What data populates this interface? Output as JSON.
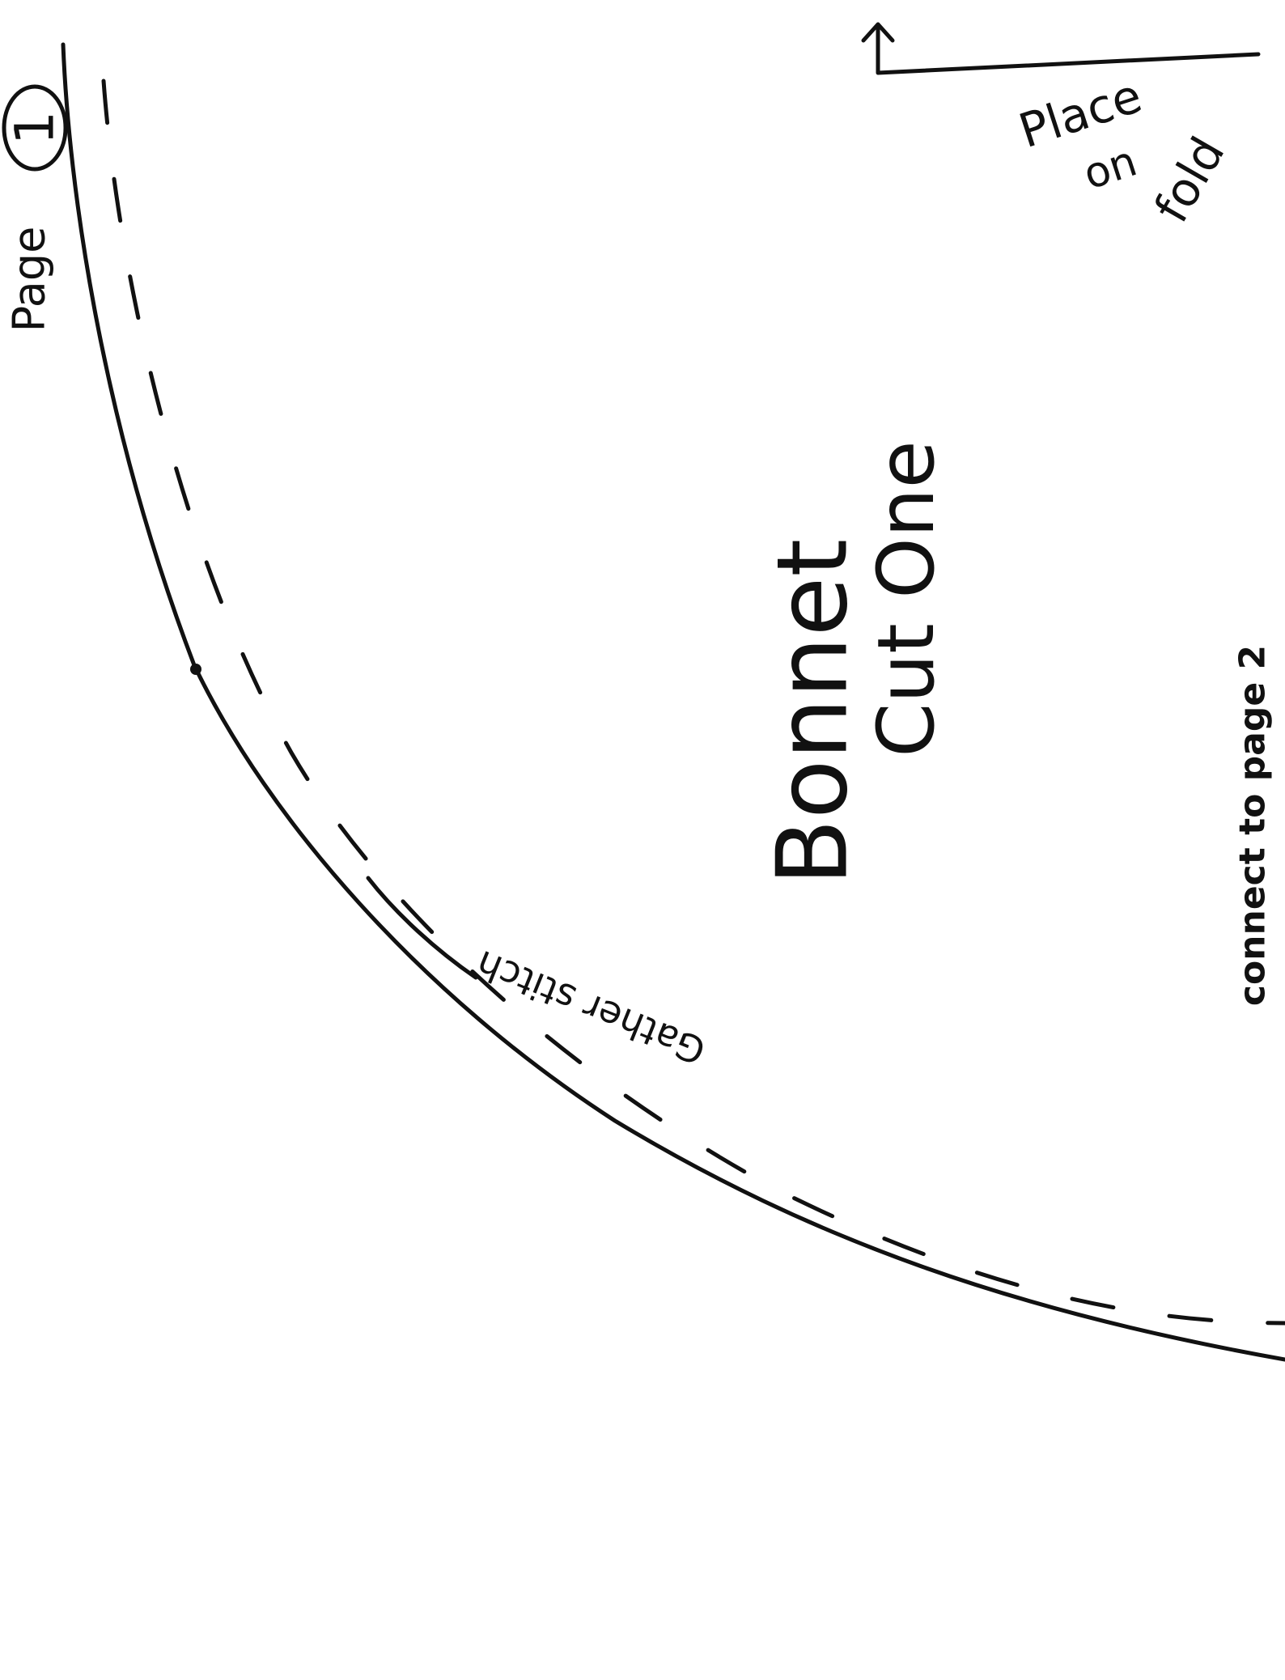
{
  "page_label": {
    "text": "Page",
    "number": "1"
  },
  "fold_note": {
    "line1": "Place",
    "line2": "on",
    "line3": "fold"
  },
  "piece": {
    "name": "Bonnet",
    "instruction": "Cut One"
  },
  "stitch_note": "Gather stitch",
  "connect_note": "connect to page 2",
  "colors": {
    "ink": "#111111",
    "paper": "#ffffff"
  }
}
